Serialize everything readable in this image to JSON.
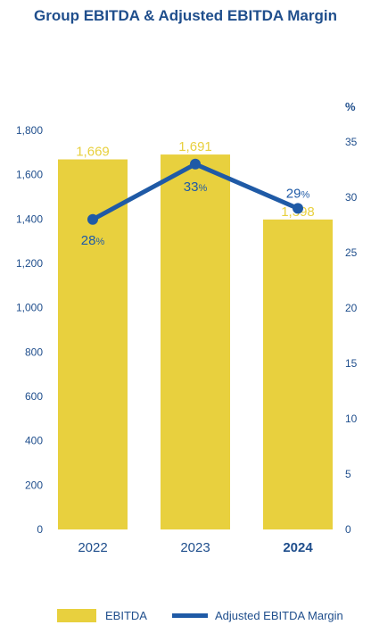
{
  "chart_data": {
    "type": "bar",
    "title": "Group EBITDA & Adjusted EBITDA Margin",
    "categories": [
      "2022",
      "2023",
      "2024"
    ],
    "series": [
      {
        "name": "EBITDA",
        "type": "bar",
        "axis": "left",
        "values": [
          1669,
          1691,
          1398
        ],
        "labels": [
          "1,669",
          "1,691",
          "1,398"
        ]
      },
      {
        "name": "Adjusted EBITDA Margin",
        "type": "line",
        "axis": "right",
        "values": [
          28,
          33,
          29
        ],
        "labels": [
          "28",
          "33",
          "29"
        ],
        "unit": "%"
      }
    ],
    "y_left": {
      "range": [
        0,
        1800
      ],
      "ticks": [
        "0",
        "200",
        "400",
        "600",
        "800",
        "1,000",
        "1,200",
        "1,400",
        "1,600",
        "1,800"
      ]
    },
    "y_right": {
      "label": "%",
      "range": [
        0,
        35
      ],
      "ticks": [
        "0",
        "5",
        "10",
        "15",
        "20",
        "25",
        "30",
        "35"
      ]
    },
    "grid": false,
    "legend_position": "bottom",
    "colors": {
      "bar": "#e8d03e",
      "line": "#1f5aa6",
      "text": "#1f4e8c",
      "bar_label": "#e8d03e"
    }
  }
}
